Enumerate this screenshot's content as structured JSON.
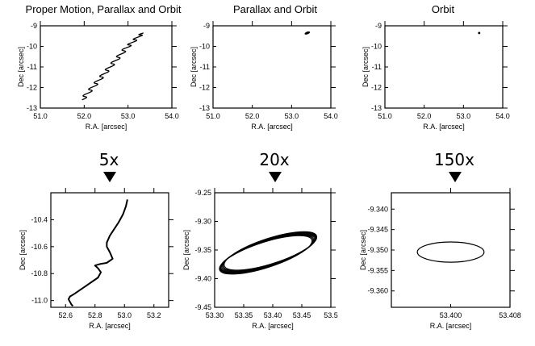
{
  "chart_data": [
    {
      "type": "line",
      "title": "Proper Motion, Parallax and Orbit",
      "xlabel": "R.A. [arcsec]",
      "ylabel": "Dec [arcsec]",
      "xlim": [
        51.0,
        54.0
      ],
      "ylim": [
        -13.0,
        -9.0
      ],
      "xticks": [
        "51.0",
        "52.0",
        "53.0",
        "54.0"
      ],
      "yticks": [
        "-9",
        "-10",
        "-11",
        "-12",
        "-13"
      ],
      "series": [
        {
          "x": [
            51.95,
            52.05,
            52.15,
            52.25,
            52.35,
            52.45,
            52.55,
            52.65,
            52.75,
            52.85,
            52.95,
            53.05,
            53.15,
            53.25,
            53.35
          ],
          "y": [
            -12.6,
            -12.35,
            -12.1,
            -11.85,
            -11.6,
            -11.35,
            -11.1,
            -10.85,
            -10.6,
            -10.35,
            -10.1,
            -9.9,
            -9.7,
            -9.5,
            -9.35
          ]
        }
      ]
    },
    {
      "type": "line",
      "title": "Parallax and Orbit",
      "xlabel": "R.A. [arcsec]",
      "ylabel": "Dec [arcsec]",
      "xlim": [
        51.0,
        54.0
      ],
      "ylim": [
        -13.0,
        -9.0
      ],
      "xticks": [
        "51.0",
        "52.0",
        "53.0",
        "54.0"
      ],
      "yticks": [
        "-9",
        "-10",
        "-11",
        "-12",
        "-13"
      ],
      "ellipse": {
        "cx": 53.4,
        "cy": -9.35,
        "rx": 0.07,
        "ry": 0.05,
        "angle": -20
      }
    },
    {
      "type": "scatter",
      "title": "Orbit",
      "xlabel": "R.A. [arcsec]",
      "ylabel": "Dec [arcsec]",
      "xlim": [
        51.0,
        54.0
      ],
      "ylim": [
        -13.0,
        -9.0
      ],
      "xticks": [
        "51.0",
        "52.0",
        "53.0",
        "54.0"
      ],
      "yticks": [
        "-9",
        "-10",
        "-11",
        "-12",
        "-13"
      ],
      "points": [
        {
          "x": 53.4,
          "y": -9.35
        }
      ]
    },
    {
      "type": "line",
      "title": "",
      "xlabel": "R.A. [arcsec]",
      "ylabel": "Dec [arcsec]",
      "xlim": [
        52.5,
        53.3
      ],
      "ylim": [
        -11.05,
        -10.2
      ],
      "xticks": [
        "52.6",
        "52.8",
        "53.0",
        "53.2"
      ],
      "yticks": [
        "-10.4",
        "-10.6",
        "-10.8",
        "-11.0"
      ],
      "series": [
        {
          "x": [
            53.02,
            53.01,
            52.99,
            52.96,
            52.93,
            52.9,
            52.88,
            52.88,
            52.9,
            52.92,
            52.88,
            52.83,
            52.8,
            52.82,
            52.84,
            52.82,
            52.78,
            52.74,
            52.7,
            52.66,
            52.63,
            52.62,
            52.63,
            52.64,
            52.65
          ],
          "y": [
            -10.25,
            -10.3,
            -10.36,
            -10.42,
            -10.47,
            -10.52,
            -10.57,
            -10.6,
            -10.64,
            -10.69,
            -10.72,
            -10.73,
            -10.74,
            -10.76,
            -10.79,
            -10.83,
            -10.86,
            -10.89,
            -10.92,
            -10.95,
            -10.97,
            -10.99,
            -11.01,
            -11.03,
            -11.04
          ]
        }
      ]
    },
    {
      "type": "line",
      "title": "",
      "xlabel": "R.A. [arcsec]",
      "ylabel": "Dec [arcsec]",
      "xlim": [
        53.3,
        53.5
      ],
      "ylim": [
        -9.45,
        -9.25
      ],
      "xticks": [
        "53.30",
        "53.35",
        "53.40",
        "53.45",
        "53.5"
      ],
      "yticks": [
        "-9.25",
        "-9.30",
        "-9.35",
        "-9.40",
        "-9.45"
      ],
      "ellipse": {
        "cx": 53.392,
        "cy": -9.355,
        "rx": 0.085,
        "ry": 0.02,
        "angle": -18
      }
    },
    {
      "type": "line",
      "title": "",
      "xlabel": "R.A. [arcsec]",
      "ylabel": "Dec [arcsec]",
      "xlim": [
        53.392,
        53.408
      ],
      "ylim": [
        -9.364,
        -9.336
      ],
      "xticks": [
        "53.400",
        "53.408"
      ],
      "yticks": [
        "-9.340",
        "-9.345",
        "-9.350",
        "-9.355",
        "-9.360"
      ],
      "ellipse": {
        "cx": 53.4,
        "cy": -9.3505,
        "rx": 0.0045,
        "ry": 0.0045,
        "angle": 0
      }
    }
  ],
  "zoom_labels": [
    "5x",
    "20x",
    "150x"
  ]
}
